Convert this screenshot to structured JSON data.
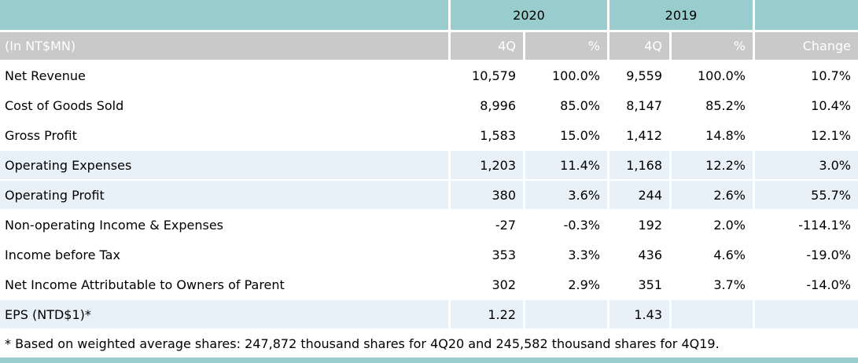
{
  "year_headers": {
    "y2020": "2020",
    "y2019": "2019"
  },
  "column_headers": {
    "unit": "(In NT$MN)",
    "q4_2020": "4Q",
    "pct_2020": "%",
    "q4_2019": "4Q",
    "pct_2019": "%",
    "change": "Change"
  },
  "table": {
    "rows": [
      {
        "label": "Net Revenue",
        "q4_2020": "10,579",
        "pct_2020": "100.0%",
        "q4_2019": "9,559",
        "pct_2019": "100.0%",
        "change": "10.7%"
      },
      {
        "label": "Cost of Goods Sold",
        "q4_2020": "8,996",
        "pct_2020": "85.0%",
        "q4_2019": "8,147",
        "pct_2019": "85.2%",
        "change": "10.4%"
      },
      {
        "label": "Gross Profit",
        "q4_2020": "1,583",
        "pct_2020": "15.0%",
        "q4_2019": "1,412",
        "pct_2019": "14.8%",
        "change": "12.1%"
      },
      {
        "label": "Operating Expenses",
        "q4_2020": "1,203",
        "pct_2020": "11.4%",
        "q4_2019": "1,168",
        "pct_2019": "12.2%",
        "change": "3.0%"
      },
      {
        "label": "Operating Profit",
        "q4_2020": "380",
        "pct_2020": "3.6%",
        "q4_2019": "244",
        "pct_2019": "2.6%",
        "change": "55.7%"
      },
      {
        "label": "Non-operating Income & Expenses",
        "q4_2020": "-27",
        "pct_2020": "-0.3%",
        "q4_2019": "192",
        "pct_2019": "2.0%",
        "change": "-114.1%"
      },
      {
        "label": "Income before Tax",
        "q4_2020": "353",
        "pct_2020": "3.3%",
        "q4_2019": "436",
        "pct_2019": "4.6%",
        "change": "-19.0%"
      },
      {
        "label": "Net Income Attributable to Owners of Parent",
        "q4_2020": "302",
        "pct_2020": "2.9%",
        "q4_2019": "351",
        "pct_2019": "3.7%",
        "change": "-14.0%"
      },
      {
        "label": "EPS (NTD$1)*",
        "q4_2020": "1.22",
        "pct_2020": "",
        "q4_2019": "1.43",
        "pct_2019": "",
        "change": ""
      }
    ]
  },
  "footnote": "* Based on weighted average shares: 247,872 thousand shares for 4Q20 and 245,582 thousand shares for 4Q19.",
  "colors": {
    "header_teal": "#99cccc",
    "header_gray": "#c9c9c9",
    "row_highlight": "#e9f1f8"
  }
}
